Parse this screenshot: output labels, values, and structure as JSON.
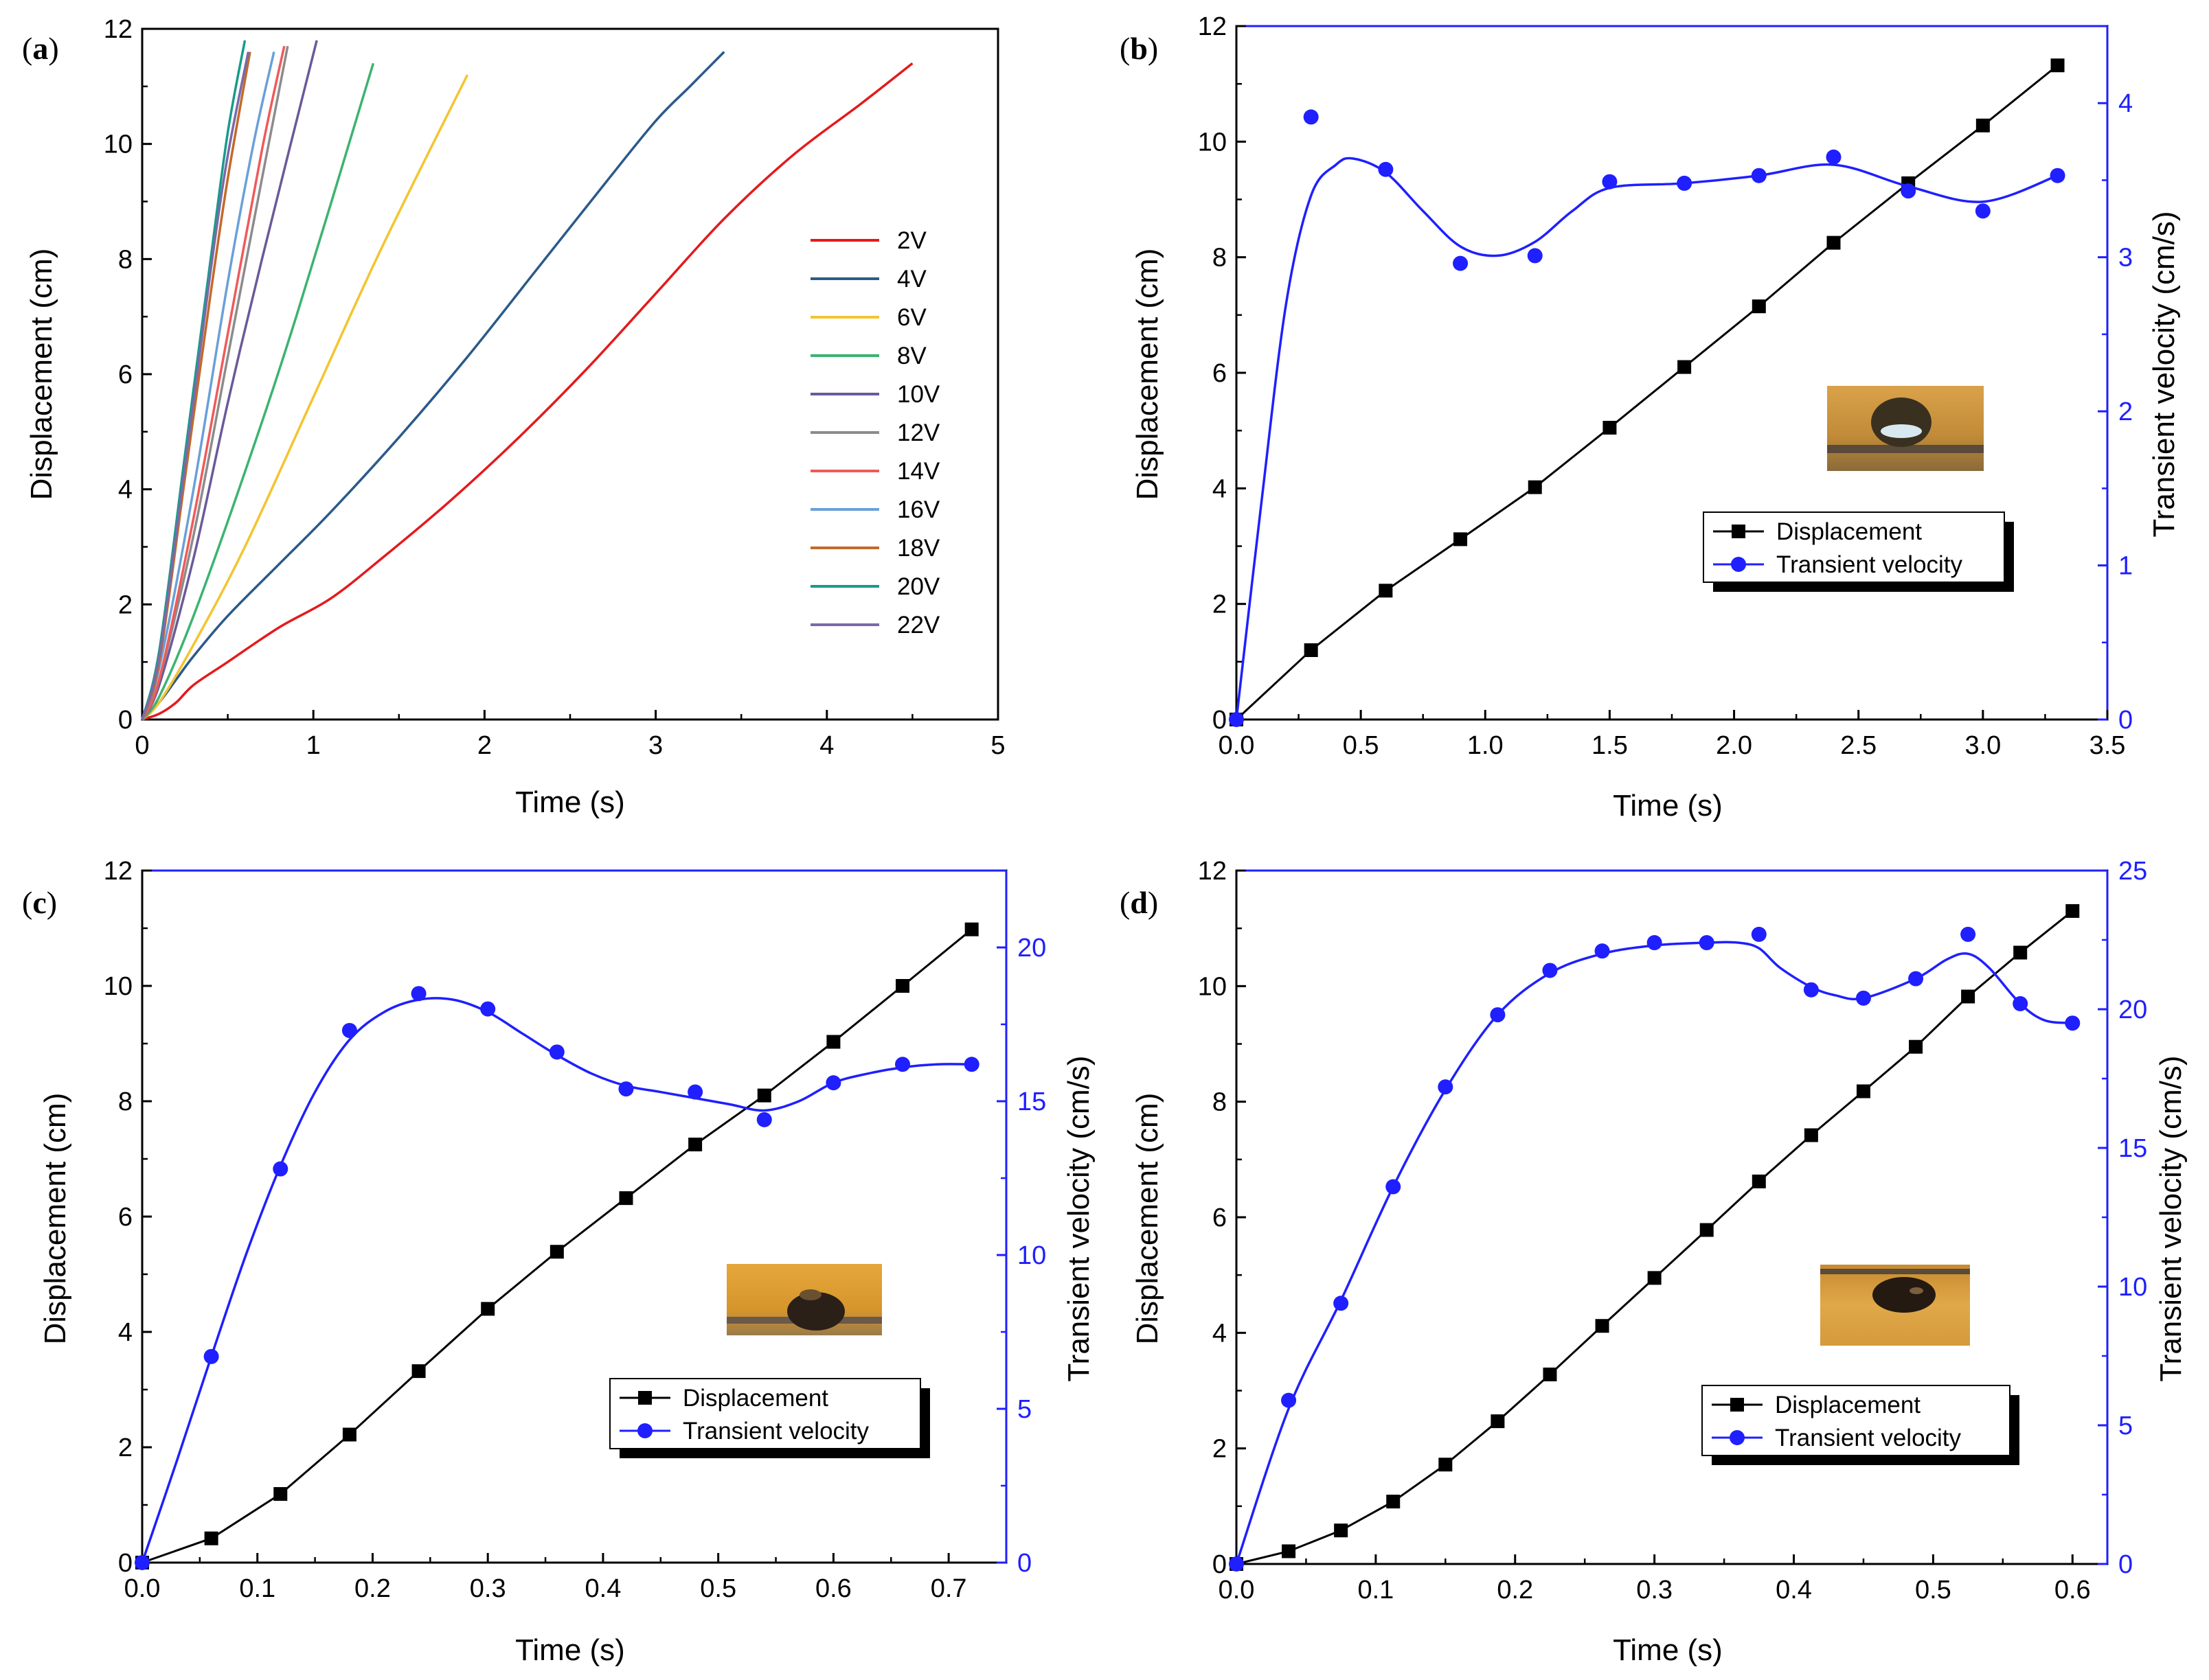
{
  "colors": {
    "axis": "#000000",
    "velocity": "#1f1fff",
    "displacement": "#000000"
  },
  "chart_data": [
    {
      "id": "a",
      "panel_label": "a",
      "type": "line",
      "xlabel": "Time (s)",
      "ylabel": "Displacement (cm)",
      "xlim": [
        0,
        5
      ],
      "ylim": [
        0,
        12
      ],
      "xticks": [
        "0",
        "1",
        "2",
        "3",
        "4",
        "5"
      ],
      "yticks": [
        "0",
        "2",
        "4",
        "6",
        "8",
        "10",
        "12"
      ],
      "series": [
        {
          "name": "2V",
          "color": "#e41a1c",
          "x": [
            0,
            0.1,
            0.2,
            0.3,
            0.5,
            0.8,
            1.1,
            1.4,
            1.8,
            2.2,
            2.6,
            3.0,
            3.4,
            3.8,
            4.2,
            4.5
          ],
          "y": [
            0,
            0.1,
            0.3,
            0.6,
            1.0,
            1.6,
            2.1,
            2.8,
            3.8,
            4.9,
            6.1,
            7.4,
            8.7,
            9.8,
            10.7,
            11.4
          ]
        },
        {
          "name": "4V",
          "color": "#2b5a8a",
          "x": [
            0,
            0.1,
            0.2,
            0.3,
            0.5,
            0.8,
            1.1,
            1.5,
            1.9,
            2.3,
            2.7,
            3.0,
            3.2,
            3.4
          ],
          "y": [
            0,
            0.3,
            0.7,
            1.1,
            1.8,
            2.7,
            3.6,
            4.9,
            6.3,
            7.8,
            9.3,
            10.4,
            11.0,
            11.6
          ]
        },
        {
          "name": "6V",
          "color": "#f4c430",
          "x": [
            0,
            0.1,
            0.3,
            0.6,
            1.0,
            1.4,
            1.9
          ],
          "y": [
            0,
            0.3,
            1.3,
            3.0,
            5.6,
            8.2,
            11.2
          ]
        },
        {
          "name": "8V",
          "color": "#3cb371",
          "x": [
            0,
            0.1,
            0.3,
            0.6,
            0.9,
            1.35
          ],
          "y": [
            0,
            0.4,
            1.8,
            4.3,
            7.0,
            11.4
          ]
        },
        {
          "name": "10V",
          "color": "#6a5a9a",
          "x": [
            0,
            0.1,
            0.3,
            0.5,
            0.7,
            1.02
          ],
          "y": [
            0,
            0.6,
            2.8,
            5.5,
            8.0,
            11.8
          ]
        },
        {
          "name": "12V",
          "color": "#8c8c8c",
          "x": [
            0,
            0.1,
            0.3,
            0.5,
            0.7,
            0.85
          ],
          "y": [
            0,
            0.7,
            3.2,
            6.3,
            9.4,
            11.7
          ]
        },
        {
          "name": "14V",
          "color": "#f05a5a",
          "x": [
            0,
            0.1,
            0.3,
            0.5,
            0.7,
            0.83
          ],
          "y": [
            0,
            0.7,
            3.5,
            6.7,
            9.9,
            11.7
          ]
        },
        {
          "name": "16V",
          "color": "#6aa0d8",
          "x": [
            0,
            0.1,
            0.3,
            0.5,
            0.65,
            0.77
          ],
          "y": [
            0,
            0.9,
            4.0,
            7.6,
            10.0,
            11.6
          ]
        },
        {
          "name": "18V",
          "color": "#c26a2a",
          "x": [
            0,
            0.1,
            0.25,
            0.4,
            0.5,
            0.63
          ],
          "y": [
            0,
            1.0,
            4.2,
            7.4,
            9.4,
            11.6
          ]
        },
        {
          "name": "20V",
          "color": "#1a9a8a",
          "x": [
            0,
            0.1,
            0.25,
            0.4,
            0.5,
            0.6
          ],
          "y": [
            0,
            1.2,
            4.6,
            8.0,
            10.2,
            11.8
          ]
        },
        {
          "name": "22V",
          "color": "#7a6aa8",
          "x": [
            0,
            0.1,
            0.25,
            0.4,
            0.5,
            0.62
          ],
          "y": [
            0,
            1.1,
            4.4,
            7.8,
            9.8,
            11.6
          ]
        }
      ]
    },
    {
      "id": "b",
      "panel_label": "b",
      "type": "line",
      "xlabel": "Time (s)",
      "ylabel": "Displacement (cm)",
      "y2label": "Transient velocity (cm/s)",
      "xlim": [
        0,
        3.5
      ],
      "ylim": [
        0,
        12
      ],
      "y2lim": [
        0,
        4.5
      ],
      "xticks": [
        "0.0",
        "0.5",
        "1.0",
        "1.5",
        "2.0",
        "2.5",
        "3.0",
        "3.5"
      ],
      "yticks": [
        "0",
        "2",
        "4",
        "6",
        "8",
        "10",
        "12"
      ],
      "y2ticks": [
        "0",
        "1",
        "2",
        "3",
        "4"
      ],
      "legend": [
        "Displacement",
        "Transient velocity"
      ],
      "series": [
        {
          "name": "Displacement",
          "axis": "left",
          "x": [
            0,
            0.3,
            0.6,
            0.9,
            1.2,
            1.5,
            1.8,
            2.1,
            2.4,
            2.7,
            3.0,
            3.3
          ],
          "y": [
            0,
            1.2,
            2.23,
            3.12,
            4.02,
            5.05,
            6.1,
            7.15,
            8.25,
            9.28,
            10.28,
            11.32
          ]
        },
        {
          "name": "Transient velocity",
          "axis": "right",
          "x": [
            0,
            0.3,
            0.6,
            0.9,
            1.2,
            1.5,
            1.8,
            2.1,
            2.4,
            2.7,
            3.0,
            3.3
          ],
          "y": [
            0,
            3.91,
            3.57,
            2.96,
            3.01,
            3.49,
            3.48,
            3.53,
            3.65,
            3.43,
            3.3,
            3.53
          ]
        }
      ],
      "velocity_fit": {
        "x": [
          0,
          0.1,
          0.2,
          0.3,
          0.4,
          0.47,
          0.6,
          0.75,
          0.9,
          1.05,
          1.2,
          1.35,
          1.5,
          1.8,
          2.1,
          2.4,
          2.7,
          3.0,
          3.3
        ],
        "y": [
          0,
          1.4,
          2.7,
          3.4,
          3.6,
          3.64,
          3.55,
          3.3,
          3.07,
          3.01,
          3.1,
          3.3,
          3.45,
          3.48,
          3.53,
          3.6,
          3.46,
          3.36,
          3.53
        ]
      }
    },
    {
      "id": "c",
      "panel_label": "c",
      "type": "line",
      "xlabel": "Time (s)",
      "ylabel": "Displacement (cm)",
      "y2label": "Transient velocity (cm/s)",
      "xlim": [
        0,
        0.75
      ],
      "ylim": [
        0,
        12
      ],
      "y2lim": [
        0,
        22.5
      ],
      "xticks": [
        "0.0",
        "0.1",
        "0.2",
        "0.3",
        "0.4",
        "0.5",
        "0.6",
        "0.7"
      ],
      "yticks": [
        "0",
        "2",
        "4",
        "6",
        "8",
        "10",
        "12"
      ],
      "y2ticks": [
        "0",
        "5",
        "10",
        "15",
        "20"
      ],
      "legend": [
        "Displacement",
        "Transient velocity"
      ],
      "series": [
        {
          "name": "Displacement",
          "axis": "left",
          "x": [
            0,
            0.06,
            0.12,
            0.18,
            0.24,
            0.3,
            0.36,
            0.42,
            0.48,
            0.54,
            0.6,
            0.66,
            0.72
          ],
          "y": [
            0,
            0.42,
            1.19,
            2.22,
            3.32,
            4.4,
            5.39,
            6.32,
            7.25,
            8.1,
            9.03,
            10.0,
            10.98
          ]
        },
        {
          "name": "Transient velocity",
          "axis": "right",
          "x": [
            0,
            0.06,
            0.12,
            0.18,
            0.24,
            0.3,
            0.36,
            0.42,
            0.48,
            0.54,
            0.6,
            0.66,
            0.72
          ],
          "y": [
            0,
            6.7,
            12.8,
            17.3,
            18.5,
            18.0,
            16.6,
            15.4,
            15.3,
            14.4,
            15.6,
            16.2,
            16.2
          ]
        }
      ],
      "velocity_fit": {
        "x": [
          0,
          0.03,
          0.06,
          0.09,
          0.12,
          0.15,
          0.18,
          0.21,
          0.24,
          0.27,
          0.3,
          0.33,
          0.36,
          0.39,
          0.42,
          0.45,
          0.48,
          0.51,
          0.54,
          0.57,
          0.6,
          0.63,
          0.66,
          0.69,
          0.72
        ],
        "y": [
          0,
          3.3,
          6.7,
          10.0,
          12.9,
          15.3,
          17.0,
          17.9,
          18.3,
          18.3,
          17.9,
          17.2,
          16.5,
          15.9,
          15.5,
          15.3,
          15.1,
          14.9,
          14.7,
          15.0,
          15.6,
          15.9,
          16.1,
          16.2,
          16.2
        ]
      }
    },
    {
      "id": "d",
      "panel_label": "d",
      "type": "line",
      "xlabel": "Time (s)",
      "ylabel": "Displacement (cm)",
      "y2label": "Transient velocity (cm/s)",
      "xlim": [
        0,
        0.625
      ],
      "ylim": [
        0,
        12
      ],
      "y2lim": [
        0,
        25
      ],
      "xticks": [
        "0.0",
        "0.1",
        "0.2",
        "0.3",
        "0.4",
        "0.5",
        "0.6"
      ],
      "yticks": [
        "0",
        "2",
        "4",
        "6",
        "8",
        "10",
        "12"
      ],
      "y2ticks": [
        "0",
        "5",
        "10",
        "15",
        "20",
        "25"
      ],
      "legend": [
        "Displacement",
        "Transient velocity"
      ],
      "series": [
        {
          "name": "Displacement",
          "axis": "left",
          "x": [
            0,
            0.0375,
            0.075,
            0.1125,
            0.15,
            0.1875,
            0.225,
            0.2625,
            0.3,
            0.3375,
            0.375,
            0.4125,
            0.45,
            0.4875,
            0.525,
            0.5625,
            0.6
          ],
          "y": [
            0,
            0.22,
            0.58,
            1.08,
            1.72,
            2.47,
            3.28,
            4.12,
            4.95,
            5.78,
            6.62,
            7.42,
            8.18,
            8.95,
            9.82,
            10.58,
            11.3
          ]
        },
        {
          "name": "Transient velocity",
          "axis": "right",
          "x": [
            0,
            0.0375,
            0.075,
            0.1125,
            0.15,
            0.1875,
            0.225,
            0.2625,
            0.3,
            0.3375,
            0.375,
            0.4125,
            0.45,
            0.4875,
            0.525,
            0.5625,
            0.6
          ],
          "y": [
            0,
            5.9,
            9.4,
            13.6,
            17.2,
            19.8,
            21.4,
            22.1,
            22.4,
            22.4,
            22.7,
            20.7,
            20.4,
            21.1,
            22.7,
            20.2,
            19.5
          ]
        }
      ],
      "velocity_fit": {
        "x": [
          0,
          0.0375,
          0.075,
          0.1125,
          0.15,
          0.1875,
          0.225,
          0.2625,
          0.3,
          0.3375,
          0.36,
          0.375,
          0.39,
          0.4125,
          0.43,
          0.45,
          0.4875,
          0.51,
          0.525,
          0.54,
          0.5625,
          0.58,
          0.6
        ],
        "y": [
          0,
          5.6,
          9.5,
          13.6,
          17.1,
          19.8,
          21.3,
          22.0,
          22.3,
          22.4,
          22.4,
          22.2,
          21.5,
          20.8,
          20.5,
          20.4,
          21.1,
          21.8,
          22.0,
          21.5,
          20.2,
          19.6,
          19.5
        ]
      }
    }
  ]
}
